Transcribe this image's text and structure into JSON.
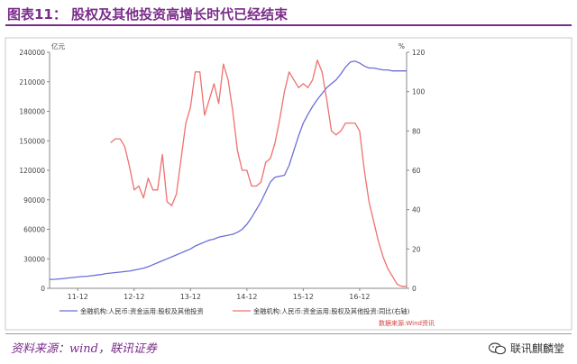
{
  "header": {
    "title": "图表11：    股权及其他投资高增长时代已经结束"
  },
  "footer": {
    "source": "资料来源：wind，联讯证券",
    "watermark": "联讯麒麟堂"
  },
  "colors": {
    "brand": "#7b2c8a",
    "series1": "#6b6fd8",
    "series2": "#f07070",
    "axis": "#888888"
  },
  "chart_data": {
    "type": "line",
    "title": "",
    "left_axis": {
      "unit": "亿元",
      "ylim": [
        0,
        240000
      ],
      "ticks": [
        0,
        30000,
        60000,
        90000,
        120000,
        150000,
        180000,
        210000,
        240000
      ]
    },
    "right_axis": {
      "unit": "%",
      "ylim": [
        0,
        120
      ],
      "ticks": [
        0,
        20,
        40,
        60,
        80,
        100,
        120
      ]
    },
    "x_ticks": [
      "11-12",
      "12-12",
      "13-12",
      "14-12",
      "15-12",
      "16-12"
    ],
    "x_tick_index": [
      6,
      18,
      30,
      42,
      54,
      66
    ],
    "n_points": 77,
    "source_note": "数据来源:Wind资讯",
    "series": [
      {
        "name": "金融机构:人民币:资金运用:股权及其他投资",
        "axis": "left",
        "start_index": 0,
        "values": [
          9000,
          9200,
          9500,
          10000,
          10500,
          11000,
          11500,
          12000,
          12300,
          12800,
          13500,
          14000,
          15000,
          15500,
          16000,
          16500,
          17000,
          17500,
          18500,
          19500,
          20500,
          22000,
          24000,
          26000,
          28000,
          30000,
          32000,
          34000,
          36000,
          38000,
          40000,
          43000,
          45000,
          47000,
          49000,
          50000,
          52000,
          53000,
          54000,
          55000,
          57000,
          60000,
          65000,
          72000,
          80000,
          88000,
          98000,
          108000,
          113000,
          114000,
          115000,
          125000,
          140000,
          155000,
          168000,
          177000,
          185000,
          192000,
          198000,
          204000,
          208000,
          212000,
          218000,
          225000,
          230000,
          231000,
          229000,
          226000,
          224000,
          224000,
          223000,
          222000,
          222000,
          221000,
          221000,
          221000,
          221000
        ]
      },
      {
        "name": "金融机构:人民币:资金运用:股权及其他投资:同比(右轴)",
        "axis": "right",
        "start_index": 13,
        "values": [
          74,
          76,
          76,
          72,
          62,
          50,
          52,
          46,
          56,
          50,
          50,
          68,
          44,
          42,
          48,
          66,
          84,
          92,
          110,
          110,
          88,
          96,
          104,
          94,
          114,
          106,
          90,
          70,
          60,
          60,
          52,
          52,
          54,
          64,
          66,
          74,
          86,
          100,
          110,
          106,
          102,
          104,
          102,
          106,
          116,
          110,
          96,
          80,
          78,
          80,
          84,
          84,
          84,
          80,
          60,
          44,
          34,
          24,
          16,
          10,
          6,
          2,
          1,
          1
        ]
      }
    ]
  }
}
